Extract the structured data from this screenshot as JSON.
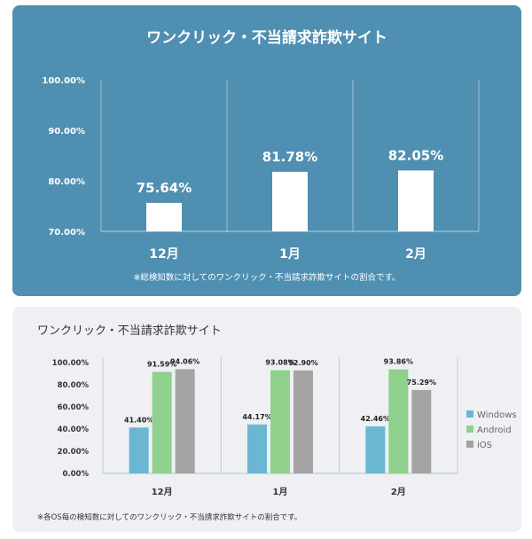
{
  "chart_data": [
    {
      "type": "bar",
      "title": "ワンクリック・不当請求詐欺サイト",
      "categories": [
        "12月",
        "1月",
        "2月"
      ],
      "series": [
        {
          "values": [
            75.64,
            81.78,
            82.05
          ]
        }
      ],
      "value_labels": [
        "75.64%",
        "81.78%",
        "82.05%"
      ],
      "ylim": [
        70,
        100
      ],
      "yticks": [
        "100.00%",
        "90.00%",
        "80.00%",
        "70.00%"
      ],
      "note": "※総検知数に対してのワンクリック・不当請求詐欺サイトの割合です。",
      "colors": {
        "background": "#4f8fb1",
        "bar": "#ffffff",
        "text": "#ffffff"
      }
    },
    {
      "type": "bar",
      "title": "ワンクリック・不当請求詐欺サイト",
      "categories": [
        "12月",
        "1月",
        "2月"
      ],
      "series": [
        {
          "name": "Windows",
          "color": "#6ab6d3",
          "values": [
            41.4,
            44.17,
            42.46
          ],
          "labels": [
            "41.40%",
            "44.17%",
            "42.46%"
          ]
        },
        {
          "name": "Android",
          "color": "#8fd18c",
          "values": [
            91.59,
            93.08,
            93.86
          ],
          "labels": [
            "91.59%",
            "93.08%",
            "93.86%"
          ]
        },
        {
          "name": "iOS",
          "color": "#a4a4a4",
          "values": [
            94.06,
            92.9,
            75.29
          ],
          "labels": [
            "94.06%",
            "92.90%",
            "75.29%"
          ]
        }
      ],
      "ylim": [
        0,
        100
      ],
      "yticks": [
        "100.00%",
        "80.00%",
        "60.00%",
        "40.00%",
        "20.00%",
        "0.00%"
      ],
      "legend": "right",
      "note": "※各OS毎の検知数に対してのワンクリック・不当請求詐欺サイトの割合です。"
    }
  ]
}
